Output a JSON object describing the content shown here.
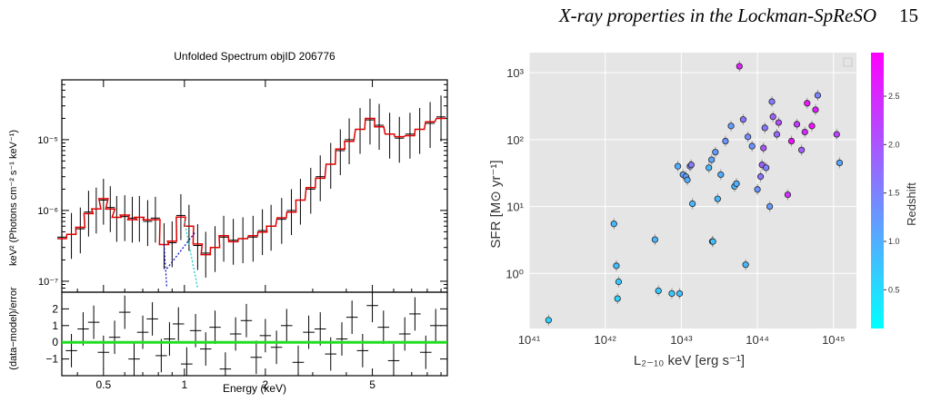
{
  "header": {
    "title": "X-ray properties in the Lockman-SpReSO",
    "page_number": "15"
  },
  "chart_data": [
    {
      "type": "line",
      "title": "Unfolded Spectrum objID 206776",
      "xlabel": "Energy (keV)",
      "ylabel": "keV² (Photons cm⁻² s⁻¹ keV⁻¹)",
      "xscale": "log",
      "yscale": "log",
      "xlim": [
        0.35,
        9.5
      ],
      "ylim": [
        7e-08,
        7e-05
      ],
      "xticks": [
        "0.5",
        "1",
        "2",
        "5"
      ],
      "yticks": [
        "10⁻⁷",
        "10⁻⁶",
        "10⁻⁵"
      ],
      "series": [
        {
          "x": [
            0.35,
            0.38,
            0.41,
            0.44,
            0.47,
            0.5,
            0.53,
            0.56,
            0.6,
            0.64,
            0.68,
            0.73,
            0.78,
            0.84,
            0.9,
            0.97,
            1.04,
            1.12,
            1.2,
            1.3,
            1.4,
            1.52,
            1.65,
            1.8,
            1.95,
            2.1,
            2.3,
            2.5,
            2.7,
            2.95,
            3.2,
            3.5,
            3.8,
            4.1,
            4.5,
            4.9,
            5.3,
            5.8,
            6.3,
            6.9,
            7.5,
            8.2,
            9.0
          ],
          "values": [
            4.2e-07,
            4.6e-07,
            5.5e-07,
            9.5e-07,
            1.05e-06,
            1.4e-06,
            1.1e-06,
            8e-07,
            8.2e-07,
            7.8e-07,
            8e-07,
            7e-07,
            7.8e-07,
            3.3e-07,
            3.5e-07,
            8.5e-07,
            6e-07,
            3.2e-07,
            2.5e-07,
            3e-07,
            4.2e-07,
            3.8e-07,
            4e-07,
            4.2e-07,
            5.2e-07,
            6e-07,
            7.5e-07,
            1e-06,
            1.4e-06,
            2e-06,
            3e-06,
            4.5e-06,
            7e-06,
            1e-05,
            1.4e-05,
            1.9e-05,
            1.6e-05,
            1.2e-05,
            1.05e-05,
            1.2e-05,
            1.4e-05,
            1.7e-05,
            2.1e-05
          ]
        }
      ]
    },
    {
      "type": "line",
      "xlabel": "Energy (keV)",
      "ylabel": "(data−model)/error",
      "xscale": "log",
      "xlim": [
        0.35,
        9.5
      ],
      "ylim": [
        -2,
        3
      ],
      "xticks": [
        "0.5",
        "1",
        "2",
        "5"
      ],
      "yticks": [
        "−1",
        "0",
        "1",
        "2"
      ],
      "series": [
        {
          "x": [
            0.38,
            0.42,
            0.46,
            0.5,
            0.55,
            0.6,
            0.65,
            0.7,
            0.76,
            0.82,
            0.88,
            0.95,
            1.02,
            1.1,
            1.2,
            1.3,
            1.42,
            1.55,
            1.7,
            1.85,
            2.0,
            2.2,
            2.4,
            2.65,
            2.9,
            3.2,
            3.5,
            3.85,
            4.2,
            4.6,
            5.0,
            5.5,
            6.0,
            6.6,
            7.2,
            7.9,
            8.6
          ],
          "values": [
            -0.5,
            0.8,
            1.2,
            -0.6,
            0.3,
            1.8,
            -1.0,
            0.6,
            1.4,
            -0.8,
            0.2,
            1.1,
            -1.3,
            0.7,
            -0.4,
            0.9,
            -1.6,
            0.5,
            1.3,
            -0.9,
            0.4,
            -0.3,
            1.0,
            -1.2,
            0.6,
            0.8,
            -0.7,
            0.2,
            1.5,
            -0.5,
            2.2,
            0.9,
            -1.1,
            0.5,
            1.7,
            -0.6,
            1.0
          ]
        }
      ]
    },
    {
      "type": "scatter",
      "xlabel": "L₂₋₁₀ keV [erg s⁻¹]",
      "ylabel": "SFR [M⊙ yr⁻¹]",
      "xscale": "log",
      "yscale": "log",
      "xlim": [
        1e+41,
        2e+45
      ],
      "ylim": [
        0.15,
        2000
      ],
      "xticks": [
        "10⁴¹",
        "10⁴²",
        "10⁴³",
        "10⁴⁴",
        "10⁴⁵"
      ],
      "yticks": [
        "10⁰",
        "10¹",
        "10²",
        "10³"
      ],
      "colorbar": {
        "label": "Redshift",
        "range": [
          0.1,
          2.95
        ],
        "ticks": [
          "0.5",
          "1.0",
          "1.5",
          "2.0",
          "2.5"
        ],
        "colors": [
          "#00ffff",
          "#ff00ff"
        ]
      },
      "grid": true,
      "x": [
        1.8e+41,
        1.3e+42,
        1.4e+42,
        1.5e+42,
        1.45e+42,
        4.5e+42,
        5e+42,
        7.5e+42,
        9e+42,
        9.5e+42,
        1.05e+43,
        1.15e+43,
        1.2e+43,
        1.3e+43,
        1.35e+43,
        1.4e+43,
        2.3e+43,
        2.5e+43,
        2.55e+43,
        2.6e+43,
        2.8e+43,
        3e+43,
        3.3e+43,
        3.8e+43,
        4.5e+43,
        5e+43,
        5.3e+43,
        5.8e+43,
        6.5e+43,
        7e+43,
        7.5e+43,
        8.5e+43,
        1e+44,
        1.1e+44,
        1.15e+44,
        1.2e+44,
        1.25e+44,
        1.3e+44,
        1.45e+44,
        1.55e+44,
        1.6e+44,
        1.8e+44,
        1.9e+44,
        2.5e+44,
        2.8e+44,
        3.3e+44,
        3.8e+44,
        4.2e+44,
        4.5e+44,
        5.2e+44,
        5.8e+44,
        6.2e+44,
        1.1e+45,
        1.2e+45
      ],
      "y": [
        0.2,
        5.5,
        1.3,
        0.75,
        0.42,
        3.2,
        0.55,
        0.5,
        40,
        0.5,
        30,
        28,
        25,
        40,
        42,
        11,
        38,
        50,
        3,
        3,
        65,
        13,
        30,
        95,
        160,
        20,
        22,
        1250,
        200,
        1.35,
        110,
        80,
        18,
        28,
        42,
        75,
        150,
        38,
        10,
        370,
        220,
        120,
        180,
        15,
        95,
        170,
        70,
        130,
        350,
        160,
        280,
        460,
        120,
        45
      ],
      "z": [
        0.6,
        0.9,
        0.8,
        0.7,
        0.6,
        0.9,
        0.7,
        0.7,
        1.0,
        0.8,
        1.1,
        1.2,
        1.0,
        1.4,
        1.6,
        0.9,
        0.9,
        1.1,
        0.8,
        0.8,
        1.2,
        0.9,
        1.0,
        1.3,
        1.2,
        0.9,
        1.0,
        2.6,
        1.7,
        0.9,
        1.4,
        1.3,
        1.3,
        1.7,
        1.9,
        2.0,
        1.6,
        1.5,
        1.2,
        1.6,
        1.9,
        1.8,
        2.1,
        2.4,
        2.8,
        2.3,
        1.9,
        2.5,
        2.7,
        2.8,
        2.6,
        1.5,
        2.2,
        1.1
      ],
      "legend": "top-right"
    }
  ]
}
